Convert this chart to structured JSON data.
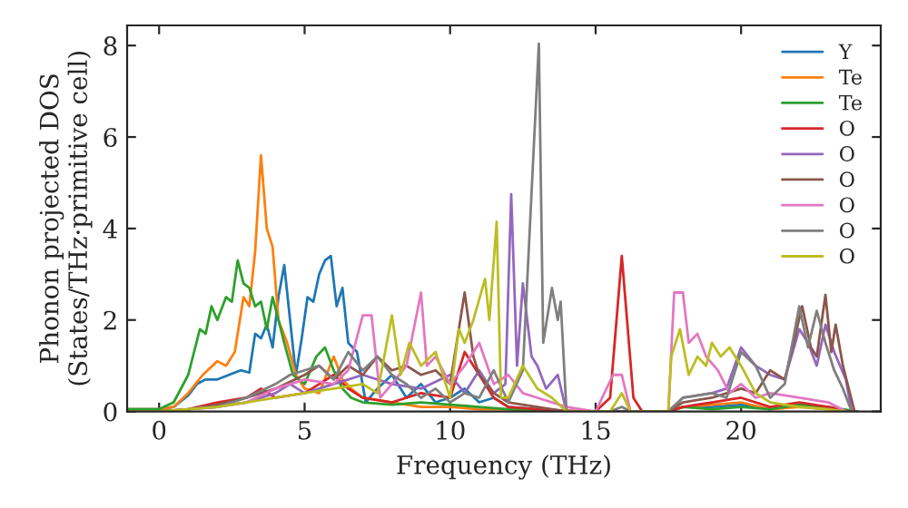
{
  "chart_data": {
    "type": "line",
    "xlabel": "Frequency (THz)",
    "ylabel": "Phonon projected DOS\n(States/THz·primitive cell)",
    "xlim": [
      -1.1,
      24.8
    ],
    "ylim": [
      0,
      8.44
    ],
    "xticks": [
      0,
      5,
      10,
      15,
      20
    ],
    "yticks": [
      0,
      2,
      4,
      6,
      8
    ],
    "grid": false,
    "legend": "top right",
    "series": [
      {
        "name": "Y",
        "color": "#1f77b4",
        "x": [
          -1.1,
          0,
          0.5,
          1,
          1.3,
          1.6,
          2,
          2.4,
          2.8,
          3.1,
          3.3,
          3.5,
          3.7,
          3.9,
          4.1,
          4.3,
          4.5,
          4.7,
          4.9,
          5.1,
          5.3,
          5.5,
          5.7,
          5.9,
          6.1,
          6.3,
          6.5,
          6.8,
          7.1,
          7.5,
          8,
          8.5,
          9,
          9.5,
          10,
          10.5,
          11,
          11.5,
          12,
          13,
          14,
          17.5,
          18,
          19,
          20,
          21
        ],
        "values": [
          0.05,
          0.05,
          0.1,
          0.35,
          0.6,
          0.7,
          0.7,
          0.8,
          0.9,
          0.85,
          1.7,
          1.6,
          1.9,
          1.4,
          2.5,
          3.2,
          2.0,
          0.8,
          1.6,
          2.5,
          2.4,
          3.0,
          3.3,
          3.4,
          2.3,
          2.7,
          1.5,
          1.3,
          0.2,
          0.5,
          0.8,
          0.3,
          0.6,
          0.2,
          0.3,
          0.5,
          0.2,
          0.3,
          0.1,
          0.05,
          0,
          0,
          0.1,
          0.1,
          0.15,
          0.05
        ]
      },
      {
        "name": "Te",
        "color": "#ff7f0e",
        "x": [
          -1.1,
          0,
          0.5,
          1,
          1.5,
          2,
          2.3,
          2.6,
          2.9,
          3.1,
          3.3,
          3.5,
          3.7,
          3.9,
          4.1,
          4.4,
          4.7,
          5,
          5.5,
          6,
          6.3,
          6.6,
          7,
          8,
          9,
          10,
          11,
          12,
          13,
          14,
          17.5,
          18,
          19,
          20,
          21,
          22,
          23,
          24
        ],
        "values": [
          0.05,
          0.05,
          0.1,
          0.4,
          0.8,
          1.1,
          1.0,
          1.3,
          2.5,
          2.3,
          3.5,
          5.6,
          4.0,
          3.6,
          2.0,
          1.5,
          0.8,
          0.5,
          0.4,
          1.2,
          0.7,
          0.5,
          0.3,
          0.2,
          0.1,
          0.1,
          0.05,
          0.05,
          0.02,
          0,
          0,
          0.1,
          0.15,
          0.2,
          0.05,
          0.1,
          0.05,
          0
        ]
      },
      {
        "name": "Te",
        "color": "#2ca02c",
        "x": [
          -1.1,
          0,
          0.5,
          1,
          1.4,
          1.6,
          1.8,
          2,
          2.3,
          2.5,
          2.7,
          2.9,
          3.1,
          3.3,
          3.5,
          3.7,
          3.9,
          4.1,
          4.3,
          4.6,
          5,
          5.4,
          5.7,
          6,
          6.3,
          6.6,
          7,
          8,
          9,
          10,
          11,
          12,
          13,
          14,
          17.5,
          18,
          19,
          20,
          21,
          22,
          23,
          24
        ],
        "values": [
          0.05,
          0.05,
          0.2,
          0.8,
          1.8,
          1.7,
          2.3,
          2.0,
          2.5,
          2.4,
          3.3,
          2.8,
          2.7,
          2.3,
          2.4,
          1.8,
          2.5,
          2.0,
          1.5,
          0.8,
          0.6,
          1.2,
          1.4,
          0.9,
          0.5,
          0.3,
          0.2,
          0.15,
          0.2,
          0.15,
          0.1,
          0.05,
          0.02,
          0,
          0,
          0.1,
          0.05,
          0.1,
          0.05,
          0.15,
          0.1,
          0
        ]
      },
      {
        "name": "O",
        "color": "#d62728",
        "x": [
          -1.1,
          0,
          1,
          2,
          3,
          3.5,
          4,
          5,
          5.5,
          6,
          6.5,
          7,
          8,
          9,
          10,
          10.5,
          11,
          11.5,
          12,
          13,
          14,
          15,
          15.5,
          15.9,
          16.3,
          16.6,
          17.5,
          18,
          19,
          20,
          21,
          22,
          23,
          23.7
        ],
        "values": [
          0,
          0,
          0.05,
          0.2,
          0.3,
          0.5,
          0.3,
          0.4,
          0.6,
          0.8,
          0.5,
          0.3,
          0.2,
          0.4,
          0.3,
          1.3,
          0.8,
          0.3,
          0.1,
          0.05,
          0.02,
          0,
          0.3,
          3.4,
          0.3,
          0,
          0,
          0.1,
          0.2,
          0.3,
          0.1,
          0.2,
          0.1,
          0
        ]
      },
      {
        "name": "O",
        "color": "#9467bd",
        "x": [
          2,
          3,
          4,
          4.5,
          5,
          6,
          7,
          8,
          9,
          10,
          10.5,
          11,
          11.5,
          11.9,
          12.1,
          12.3,
          12.5,
          12.8,
          13,
          13.3,
          13.7,
          14,
          17.5,
          18,
          19,
          19.5,
          20,
          20.5,
          21,
          21.5,
          22,
          22.3,
          22.6,
          22.9,
          23.2,
          23.6,
          23.8
        ],
        "values": [
          0.1,
          0.2,
          0.4,
          0.6,
          0.4,
          0.6,
          0.8,
          0.6,
          0.5,
          0.8,
          0.4,
          0.9,
          0.4,
          0.6,
          4.75,
          1.0,
          2.8,
          1.2,
          1.0,
          0.5,
          0.8,
          0,
          0,
          0.3,
          0.4,
          0.5,
          1.4,
          1.0,
          0.8,
          0.7,
          1.8,
          1.5,
          1.0,
          1.9,
          1.3,
          0.7,
          0
        ]
      },
      {
        "name": "O",
        "color": "#8c564b",
        "x": [
          -1.1,
          0,
          1,
          2,
          3,
          4,
          5,
          5.5,
          6,
          6.5,
          7,
          7.5,
          8,
          8.5,
          9,
          9.5,
          10,
          10.5,
          10.8,
          11,
          11.5,
          12,
          13,
          14,
          17.5,
          18,
          19,
          20,
          20.5,
          21,
          21.5,
          22.1,
          22.4,
          22.6,
          22.9,
          23.1,
          23.25,
          23.5,
          23.9
        ],
        "values": [
          0,
          0,
          0.05,
          0.15,
          0.3,
          0.5,
          0.8,
          1.0,
          0.7,
          1.0,
          0.8,
          1.2,
          0.9,
          1.0,
          0.8,
          0.9,
          0.6,
          2.6,
          1.2,
          0.8,
          0.4,
          0.2,
          0.1,
          0,
          0,
          0.2,
          0.3,
          0.5,
          0.4,
          0.9,
          0.7,
          2.3,
          1.4,
          1.2,
          2.55,
          1.3,
          1.9,
          1.0,
          0
        ]
      },
      {
        "name": "O",
        "color": "#e377c2",
        "x": [
          1,
          2,
          3,
          4,
          5,
          6,
          6.5,
          7,
          7.3,
          7.6,
          8,
          8.5,
          9,
          9.2,
          9.5,
          10,
          10.5,
          11,
          11.5,
          12,
          12.5,
          13,
          14,
          15,
          15.6,
          15.9,
          16.2,
          17.5,
          17.7,
          18,
          18.2,
          18.5,
          18.8,
          19.2,
          19.6,
          20,
          20.5,
          21,
          22,
          23,
          23.6
        ],
        "values": [
          0.05,
          0.1,
          0.2,
          0.5,
          0.7,
          0.6,
          0.9,
          2.1,
          2.1,
          0.3,
          0.6,
          1.0,
          2.6,
          1.0,
          1.2,
          0.6,
          1.0,
          1.5,
          0.6,
          0.8,
          0.4,
          0.3,
          0.1,
          0,
          0.8,
          0.8,
          0,
          0,
          2.6,
          2.6,
          1.5,
          1.7,
          1.2,
          0.9,
          0.4,
          0.6,
          0.3,
          0.4,
          0.3,
          0.2,
          0
        ]
      },
      {
        "name": "O",
        "color": "#7f7f7f",
        "x": [
          -1.1,
          0,
          1,
          2,
          3,
          4,
          4.5,
          5,
          5.5,
          6,
          6.5,
          7,
          7.5,
          8,
          8.5,
          9,
          9.5,
          10,
          10.5,
          11,
          11.5,
          12,
          12.5,
          13.05,
          13.2,
          13.5,
          13.7,
          13.8,
          14,
          15.5,
          15.9,
          16.2,
          17.5,
          18,
          19,
          19.5,
          20,
          20.5,
          21,
          21.5,
          22,
          22.3,
          22.6,
          22.9,
          23.2,
          23.5,
          23.8
        ],
        "values": [
          0,
          0,
          0.05,
          0.1,
          0.3,
          0.6,
          0.8,
          0.9,
          1.0,
          0.7,
          1.3,
          0.9,
          1.2,
          0.8,
          0.6,
          0.3,
          0.5,
          0.2,
          0.4,
          0.3,
          0.9,
          0.2,
          0.9,
          8.04,
          1.5,
          2.7,
          2.0,
          2.4,
          0,
          0,
          0.1,
          0,
          0,
          0.3,
          0.4,
          0.3,
          1.3,
          1.0,
          0.3,
          0.6,
          2.3,
          1.4,
          2.2,
          1.5,
          0.9,
          0.5,
          0
        ]
      },
      {
        "name": "O",
        "color": "#bcbd22",
        "x": [
          -1.1,
          0,
          1,
          2,
          3,
          4,
          5,
          6,
          7,
          7.5,
          8,
          8.3,
          8.6,
          9,
          9.5,
          10,
          10.3,
          10.5,
          10.8,
          11.2,
          11.35,
          11.6,
          11.75,
          12,
          12.5,
          13,
          13.5,
          14,
          15.5,
          15.9,
          16.2,
          17.5,
          17.6,
          17.9,
          18.2,
          18.5,
          18.8,
          19,
          19.3,
          19.6,
          20,
          20.5,
          21,
          22,
          23,
          23.6
        ],
        "values": [
          0,
          0,
          0.05,
          0.1,
          0.2,
          0.3,
          0.4,
          0.5,
          0.6,
          0.4,
          2.1,
          0.8,
          1.5,
          1.0,
          1.3,
          0.3,
          1.8,
          1.5,
          2.0,
          2.9,
          2.0,
          4.15,
          0.3,
          0.3,
          1.0,
          0.5,
          0.3,
          0,
          0,
          0.4,
          0,
          0,
          1.2,
          1.8,
          0.8,
          1.2,
          1.0,
          1.5,
          1.2,
          1.4,
          1.0,
          0.4,
          0.2,
          0.1,
          0.05,
          0
        ]
      }
    ]
  }
}
